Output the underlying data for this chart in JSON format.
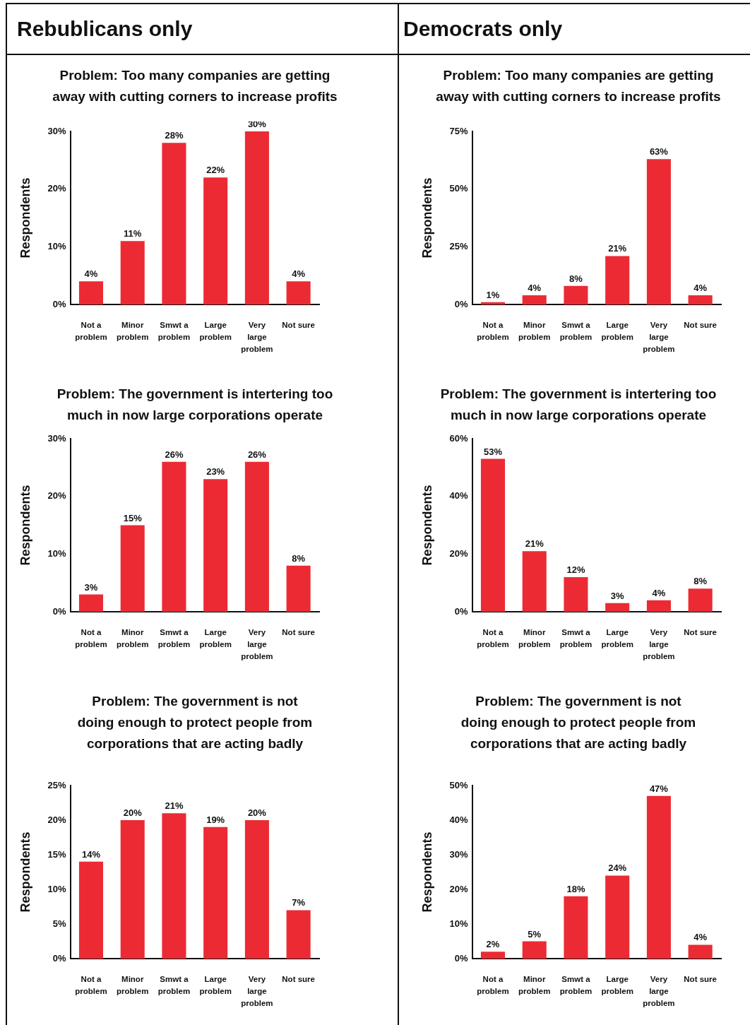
{
  "chart_data": [
    {
      "type": "other",
      "title": "Rebublicans only"
    },
    {
      "type": "other",
      "title": "Democrats only"
    },
    {
      "type": "bar",
      "title": "Problem: Too many companies are getting away with cutting corners to increase profits",
      "ylabel": "Respondents",
      "categories": [
        "Not a problem",
        "Minor problem",
        "Smwt a problem",
        "Large problem",
        "Very large problem",
        "Not sure"
      ],
      "values": [
        4,
        11,
        28,
        22,
        30,
        4
      ],
      "value_labels": [
        "4%",
        "11%",
        "28%",
        "22%",
        "30%",
        "4%"
      ],
      "color": "#ec2a33",
      "ylim": [
        0,
        30
      ],
      "yticks": [
        {
          "value": 0,
          "label": "0%"
        },
        {
          "value": 10,
          "label": "10%"
        },
        {
          "value": 20,
          "label": "20%"
        },
        {
          "value": 30,
          "label": "30%"
        }
      ],
      "grid": false,
      "legend": false
    },
    {
      "type": "bar",
      "title": "Problem: Too many companies are getting away with cutting corners to increase profits",
      "ylabel": "Respondents",
      "categories": [
        "Not a problem",
        "Minor problem",
        "Smwt a problem",
        "Large problem",
        "Very large problem",
        "Not sure"
      ],
      "values": [
        1,
        4,
        8,
        21,
        63,
        4
      ],
      "value_labels": [
        "1%",
        "4%",
        "8%",
        "21%",
        "63%",
        "4%"
      ],
      "color": "#ec2a33",
      "ylim": [
        0,
        75
      ],
      "yticks": [
        {
          "value": 0,
          "label": "0%"
        },
        {
          "value": 25,
          "label": "25%"
        },
        {
          "value": 50,
          "label": "50%"
        },
        {
          "value": 75,
          "label": "75%"
        }
      ],
      "grid": false,
      "legend": false
    },
    {
      "type": "bar",
      "title": "Problem: The government is intertering too much in now large corporations operate",
      "ylabel": "Respondents",
      "categories": [
        "Not a problem",
        "Minor problem",
        "Smwt a problem",
        "Large problem",
        "Very large problem",
        "Not sure"
      ],
      "values": [
        3,
        15,
        26,
        23,
        26,
        8
      ],
      "value_labels": [
        "3%",
        "15%",
        "26%",
        "23%",
        "26%",
        "8%"
      ],
      "color": "#ec2a33",
      "ylim": [
        0,
        30
      ],
      "yticks": [
        {
          "value": 0,
          "label": "0%"
        },
        {
          "value": 10,
          "label": "10%"
        },
        {
          "value": 20,
          "label": "20%"
        },
        {
          "value": 30,
          "label": "30%"
        }
      ],
      "grid": false,
      "legend": false
    },
    {
      "type": "bar",
      "title": "Problem: The government is intertering too much in now large corporations operate",
      "ylabel": "Respondents",
      "categories": [
        "Not a problem",
        "Minor problem",
        "Smwt a problem",
        "Large problem",
        "Very large problem",
        "Not sure"
      ],
      "values": [
        53,
        21,
        12,
        3,
        4,
        8
      ],
      "value_labels": [
        "53%",
        "21%",
        "12%",
        "3%",
        "4%",
        "8%"
      ],
      "color": "#ec2a33",
      "ylim": [
        0,
        60
      ],
      "yticks": [
        {
          "value": 0,
          "label": "0%"
        },
        {
          "value": 20,
          "label": "20%"
        },
        {
          "value": 40,
          "label": "40%"
        },
        {
          "value": 60,
          "label": "60%"
        }
      ],
      "grid": false,
      "legend": false
    },
    {
      "type": "bar",
      "title": "Problem: The government is not doing enough to protect people from corporations that are acting badly",
      "ylabel": "Respondents",
      "categories": [
        "Not a problem",
        "Minor problem",
        "Smwt a problem",
        "Large problem",
        "Very large problem",
        "Not sure"
      ],
      "values": [
        14,
        20,
        21,
        19,
        20,
        7
      ],
      "value_labels": [
        "14%",
        "20%",
        "21%",
        "19%",
        "20%",
        "7%"
      ],
      "color": "#ec2a33",
      "ylim": [
        0,
        25
      ],
      "yticks": [
        {
          "value": 0,
          "label": "0%"
        },
        {
          "value": 5,
          "label": "5%"
        },
        {
          "value": 10,
          "label": "10%"
        },
        {
          "value": 15,
          "label": "15%"
        },
        {
          "value": 20,
          "label": "20%"
        },
        {
          "value": 25,
          "label": "25%"
        }
      ],
      "grid": false,
      "legend": false
    },
    {
      "type": "bar",
      "title": "Problem: The government is not doing enough to protect people from corporations that are acting badly",
      "ylabel": "Respondents",
      "categories": [
        "Not a problem",
        "Minor problem",
        "Smwt a problem",
        "Large problem",
        "Very large problem",
        "Not sure"
      ],
      "values": [
        2,
        5,
        18,
        24,
        47,
        4
      ],
      "value_labels": [
        "2%",
        "5%",
        "18%",
        "24%",
        "47%",
        "4%"
      ],
      "color": "#ec2a33",
      "ylim": [
        0,
        50
      ],
      "yticks": [
        {
          "value": 0,
          "label": "0%"
        },
        {
          "value": 10,
          "label": "10%"
        },
        {
          "value": 20,
          "label": "20%"
        },
        {
          "value": 30,
          "label": "30%"
        },
        {
          "value": 40,
          "label": "40%"
        },
        {
          "value": 50,
          "label": "50%"
        }
      ],
      "grid": false,
      "legend": false
    }
  ]
}
